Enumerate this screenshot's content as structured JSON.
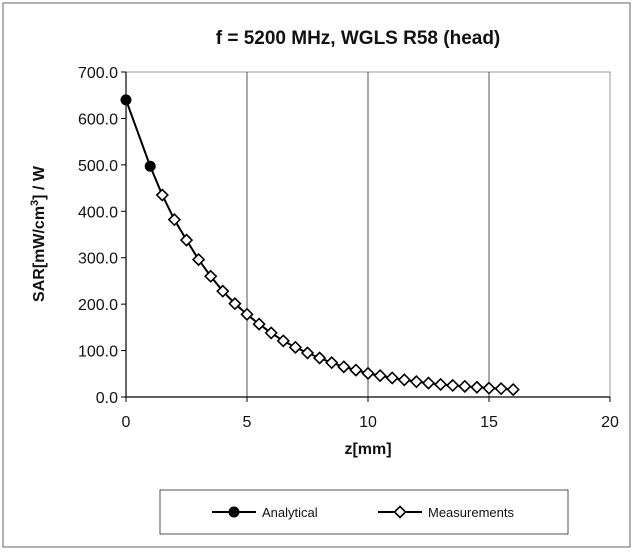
{
  "chart_data": {
    "type": "line",
    "title": "f = 5200 MHz, WGLS R58 (head)",
    "xlabel": "z[mm]",
    "ylabel_main": "SAR[mW/cm",
    "ylabel_sup": "3",
    "ylabel_tail": "] / W",
    "xlim": [
      0,
      20
    ],
    "ylim": [
      0,
      700
    ],
    "x_ticks": [
      0,
      5,
      10,
      15,
      20
    ],
    "x_tick_labels": [
      "0",
      "5",
      "10",
      "15",
      "20"
    ],
    "y_ticks": [
      0,
      100,
      200,
      300,
      400,
      500,
      600,
      700
    ],
    "y_tick_labels": [
      "0.0",
      "100.0",
      "200.0",
      "300.0",
      "400.0",
      "500.0",
      "600.0",
      "700.0"
    ],
    "grid": "vertical",
    "legend_position": "bottom",
    "series": [
      {
        "name": "Analytical",
        "marker": "filled-circle",
        "color": "#000000",
        "x": [
          0,
          1
        ],
        "y": [
          640,
          497
        ]
      },
      {
        "name": "Measurements",
        "marker": "open-diamond",
        "color": "#000000",
        "x": [
          1.5,
          2,
          2.5,
          3,
          3.5,
          4,
          4.5,
          5,
          5.5,
          6,
          6.5,
          7,
          7.5,
          8,
          8.5,
          9,
          9.5,
          10,
          10.5,
          11,
          11.5,
          12,
          12.5,
          13,
          13.5,
          14,
          14.5,
          15,
          15.5,
          16
        ],
        "y": [
          435,
          382,
          338,
          296,
          260,
          228,
          201,
          178,
          157,
          138,
          121,
          107,
          95,
          84,
          74,
          65,
          58,
          51,
          46,
          41,
          37,
          33,
          30,
          27,
          25,
          23,
          21,
          19,
          18,
          16
        ]
      }
    ]
  }
}
